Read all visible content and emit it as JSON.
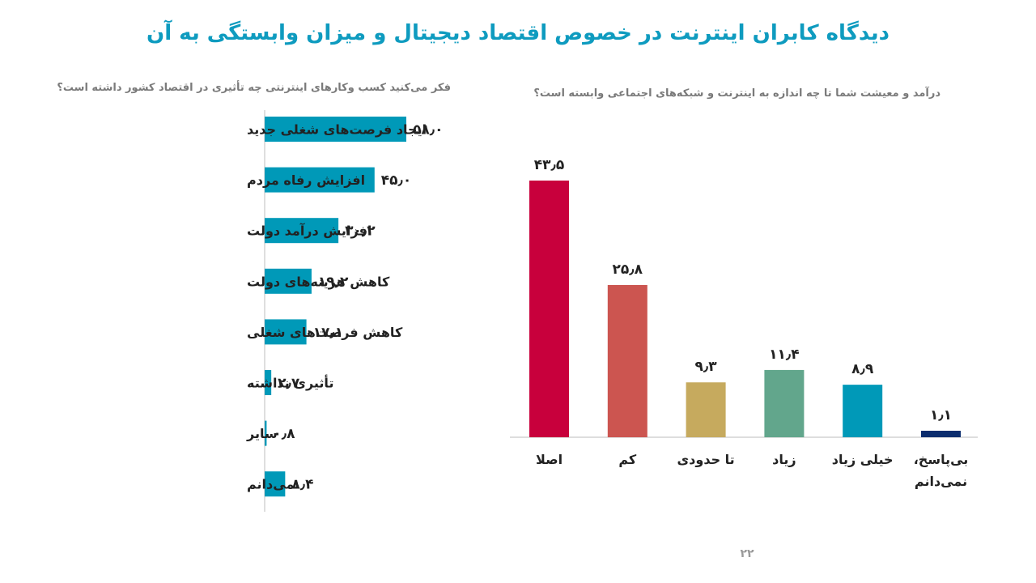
{
  "title": "دیدگاه کابران اینترنت در خصوص اقتصاد دیجیتال و میزان وابستگی به آن",
  "page_number": "۲۲",
  "colors": {
    "title": "#0e9bbf",
    "bar_left": "#0099b8",
    "axis": "#bdbdbd"
  },
  "chart_data": [
    {
      "type": "bar",
      "orientation": "horizontal",
      "title": "فکر می‌کنید کسب وکارهای اینترنتی چه تأثیری در اقتصاد کشور داشته است؟",
      "categories": [
        "ایجاد فرصت‌های شغلی جدید",
        "افزایش رفاه مردم",
        "افزایش درآمد دولت",
        "کاهش هزینه‌های دولت",
        "کاهش فرصت‌های شغلی",
        "تأثیری نداشته",
        "سایر",
        "نمی‌دانم"
      ],
      "values": [
        58.0,
        45.0,
        30.2,
        19.2,
        17.1,
        2.7,
        0.8,
        8.4
      ],
      "labels": [
        "۵۸٫۰",
        "۴۵٫۰",
        "۳۰٫۲",
        "۱۹٫۲",
        "۱۷٫۱",
        "۲٫۷",
        "۰٫۸",
        "۸٫۴"
      ],
      "color": "#0099b8",
      "xlim": [
        0,
        58
      ]
    },
    {
      "type": "bar",
      "orientation": "vertical",
      "title": "درآمد و معیشت شما تا چه اندازه به اینترنت و شبکه‌های اجتماعی وابسته است؟",
      "categories": [
        "اصلا",
        "کم",
        "تا حدودی",
        "زیاد",
        "خیلی زیاد",
        "بی‌پاسخ، نمی‌دانم"
      ],
      "category_lines": [
        [
          "اصلا"
        ],
        [
          "کم"
        ],
        [
          "تا حدودی"
        ],
        [
          "زیاد"
        ],
        [
          "خیلی زیاد"
        ],
        [
          "بی‌پاسخ،",
          "نمی‌دانم"
        ]
      ],
      "values": [
        43.5,
        25.8,
        9.3,
        11.4,
        8.9,
        1.1
      ],
      "labels": [
        "۴۳٫۵",
        "۲۵٫۸",
        "۹٫۳",
        "۱۱٫۴",
        "۸٫۹",
        "۱٫۱"
      ],
      "colors": [
        "#c8003c",
        "#cc5550",
        "#c6aa5e",
        "#62a68c",
        "#0099b8",
        "#0b2d6e"
      ],
      "ylim": [
        0,
        43.5
      ]
    }
  ]
}
